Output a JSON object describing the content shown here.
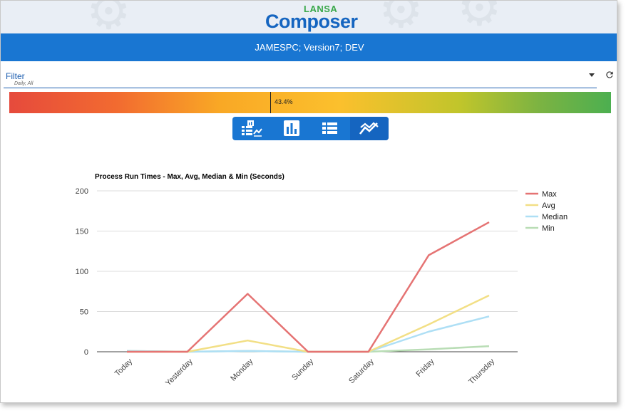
{
  "header": {
    "logo_small": "LANSA",
    "logo_large": "Composer",
    "server_info": "JAMESPC; Version7; DEV"
  },
  "filter": {
    "label": "Filter",
    "subtitle": "Daily, All"
  },
  "progress": {
    "value_fraction": 0.434,
    "label": "43.4%"
  },
  "view_toggle": {
    "buttons": [
      "summary-icon",
      "bar-chart-icon",
      "list-icon",
      "line-chart-icon"
    ],
    "active": "line-chart-icon"
  },
  "colors": {
    "accent": "#1976d2",
    "max": "#e57373",
    "avg": "#f2df85",
    "median": "#aedff5",
    "min": "#b9ddb5"
  },
  "chart_data": {
    "type": "line",
    "title": "Process Run Times - Max, Avg, Median & Min (Seconds)",
    "categories": [
      "Today",
      "Yesterday",
      "Monday",
      "Sunday",
      "Saturday",
      "Friday",
      "Thursday"
    ],
    "ylim": [
      0,
      200
    ],
    "yticks": [
      "0",
      "50",
      "100",
      "150",
      "200"
    ],
    "grid": true,
    "legend_position": "right",
    "series": [
      {
        "name": "Max",
        "color": "#e57373",
        "values": [
          0,
          0,
          72,
          0,
          0,
          120,
          161
        ]
      },
      {
        "name": "Avg",
        "color": "#f2df85",
        "values": [
          0,
          0,
          14,
          0,
          0,
          34,
          70
        ]
      },
      {
        "name": "Median",
        "color": "#aedff5",
        "values": [
          1,
          0,
          1,
          0,
          0,
          25,
          44
        ]
      },
      {
        "name": "Min",
        "color": "#b9ddb5",
        "values": [
          1,
          0,
          1,
          0,
          0,
          3,
          7
        ]
      }
    ]
  }
}
